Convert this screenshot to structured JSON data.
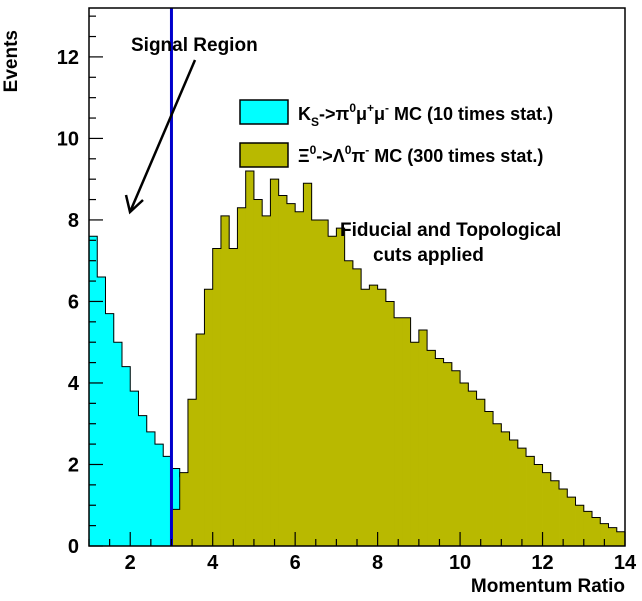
{
  "chart_data": {
    "type": "histogram",
    "xlabel": "Momentum Ratio",
    "ylabel": "Events",
    "xlim": [
      1,
      14
    ],
    "ylim": [
      0,
      13.2
    ],
    "x_ticks": [
      2,
      4,
      6,
      8,
      10,
      12,
      14
    ],
    "y_ticks": [
      0,
      2,
      4,
      6,
      8,
      10,
      12
    ],
    "bin_width": 0.2,
    "series": [
      {
        "name": "K_S->π0μ+μ- MC (10 times stat.)",
        "color": "#00ffff",
        "bin_start": 1.0,
        "values": [
          7.6,
          6.6,
          5.7,
          5.0,
          4.4,
          3.8,
          3.2,
          2.8,
          2.5,
          2.2,
          1.9,
          1.7,
          1.5,
          1.3,
          1.2,
          1.05,
          0.95,
          0.85,
          0.75,
          0.68,
          0.62,
          0.56,
          0.51,
          0.46,
          0.42,
          0.38,
          0.34,
          0.31,
          0.28,
          0.25,
          0.22,
          0.2,
          0.18,
          0.16,
          0.14,
          0.12,
          0.11,
          0.1,
          0.09,
          0.08,
          0.07,
          0.06,
          0.05,
          0.05,
          0.04,
          0.04,
          0.03,
          0.03,
          0.02,
          0.02,
          0.02
        ]
      },
      {
        "name": "Ξ0->Λ0π- MC (300 times stat.)",
        "color": "#b9b900",
        "bin_start": 2.8,
        "values": [
          0.0,
          0.9,
          1.8,
          3.6,
          5.2,
          6.3,
          7.3,
          8.1,
          7.3,
          8.3,
          9.2,
          8.5,
          8.1,
          9.0,
          8.6,
          8.4,
          8.2,
          8.9,
          8.0,
          8.0,
          7.6,
          7.8,
          7.0,
          6.8,
          6.3,
          6.4,
          6.3,
          6.0,
          5.6,
          5.6,
          5.0,
          5.3,
          4.8,
          4.6,
          4.5,
          4.3,
          4.0,
          3.8,
          3.6,
          3.3,
          3.0,
          2.8,
          2.6,
          2.4,
          2.2,
          2.0,
          1.8,
          1.6,
          1.4,
          1.2,
          1.0,
          0.85,
          0.7,
          0.55,
          0.45,
          0.35,
          0.25,
          0.18,
          0.12,
          0.08,
          0.05,
          0.02
        ]
      }
    ],
    "signal_cut_x": 3.0,
    "annotations": {
      "signal_region": "Signal Region",
      "cuts_line1": "Fiducial and Topological",
      "cuts_line2": "cuts applied"
    }
  },
  "colors": {
    "ks_fill": "#00ffff",
    "xi_fill": "#b9b900",
    "cut_line": "#0000cc",
    "axes": "#000000"
  }
}
